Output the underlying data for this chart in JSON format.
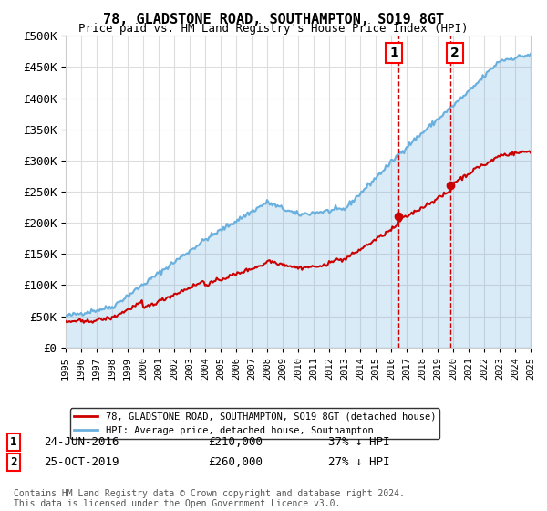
{
  "title": "78, GLADSTONE ROAD, SOUTHAMPTON, SO19 8GT",
  "subtitle": "Price paid vs. HM Land Registry's House Price Index (HPI)",
  "hpi_label": "HPI: Average price, detached house, Southampton",
  "price_label": "78, GLADSTONE ROAD, SOUTHAMPTON, SO19 8GT (detached house)",
  "ylim": [
    0,
    500000
  ],
  "yticks": [
    0,
    50000,
    100000,
    150000,
    200000,
    250000,
    300000,
    350000,
    400000,
    450000,
    500000
  ],
  "ytick_labels": [
    "£0",
    "£50K",
    "£100K",
    "£150K",
    "£200K",
    "£250K",
    "£300K",
    "£350K",
    "£400K",
    "£450K",
    "£500K"
  ],
  "transaction1": {
    "date": "24-JUN-2016",
    "price": 210000,
    "label": "37% ↓ HPI"
  },
  "transaction2": {
    "date": "25-OCT-2019",
    "price": 260000,
    "label": "27% ↓ HPI"
  },
  "transaction1_x": 2016.48,
  "transaction2_x": 2019.82,
  "hpi_color": "#6ab0de",
  "price_color": "#cc0000",
  "vline_color": "#cc0000",
  "background_color": "#ffffff",
  "grid_color": "#dddddd",
  "footer": "Contains HM Land Registry data © Crown copyright and database right 2024.\nThis data is licensed under the Open Government Licence v3.0.",
  "xmin": 1995,
  "xmax": 2025
}
